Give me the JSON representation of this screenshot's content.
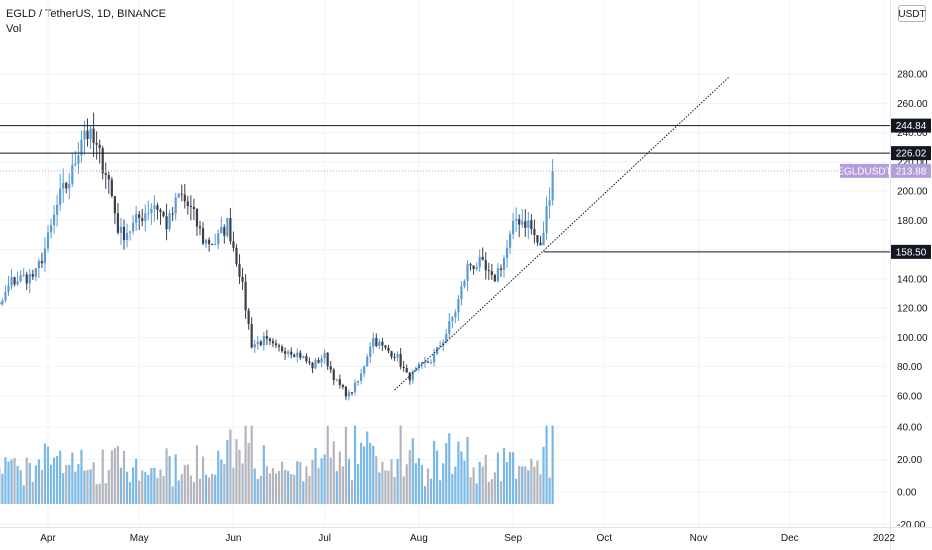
{
  "header": {
    "symbol_line": "EGLD / TetherUS, 1D, BINANCE",
    "indicator": "Vol"
  },
  "chart_data": {
    "type": "candlestick",
    "symbol": "EGLDUSDT",
    "currency": "USDT",
    "price_labels": [
      "280.00",
      "260.00",
      "240.00",
      "220.00",
      "200.00",
      "180.00",
      "160.00",
      "140.00",
      "120.00",
      "100.00",
      "80.00",
      "60.00",
      "40.00",
      "20.00",
      "0.00",
      "-20.00"
    ],
    "price_ticks": [
      280,
      260,
      240,
      220,
      200,
      180,
      160,
      140,
      120,
      100,
      80,
      60
    ],
    "volume_ticks": [
      40,
      20,
      0,
      -20
    ],
    "x_labels": [
      "Apr",
      "May",
      "Jun",
      "Jul",
      "Aug",
      "Sep",
      "Oct",
      "Nov",
      "Dec",
      "2022"
    ],
    "horizontal_levels": [
      {
        "value": 244.84,
        "label": "244.84"
      },
      {
        "value": 226.02,
        "label": "226.02"
      },
      {
        "value": 158.5,
        "label": "158.50"
      }
    ],
    "last_price": {
      "value": 213.88,
      "label": "213.88",
      "symbol_label": "EGLDUSDT"
    },
    "trendline": {
      "from": {
        "date": "2021-07-24",
        "price": 64
      },
      "to": {
        "date": "2021-11-11",
        "price": 278
      },
      "style": "dotted"
    },
    "start_date": "2021-03-08",
    "end_date": "2021-09-14",
    "anchors": [
      130,
      128,
      120,
      138,
      141,
      142,
      165,
      195,
      210,
      244,
      230,
      212,
      170,
      175,
      185,
      192,
      176,
      198,
      186,
      166,
      165,
      178,
      145,
      95,
      98,
      92,
      92,
      88,
      80,
      88,
      70,
      60,
      72,
      100,
      92,
      88,
      72,
      80,
      85,
      100,
      120,
      150,
      150,
      138,
      155,
      182,
      178,
      160,
      214
    ],
    "up_color": "#26a69a",
    "candle_up_color": "#5b9bd5",
    "candle_down_color": "#3c3f4a",
    "volume_up_color": "#7ab8e6",
    "volume_down_color": "#b2b5be",
    "level_color": "#131722",
    "last_price_color": "#b39ddb"
  }
}
